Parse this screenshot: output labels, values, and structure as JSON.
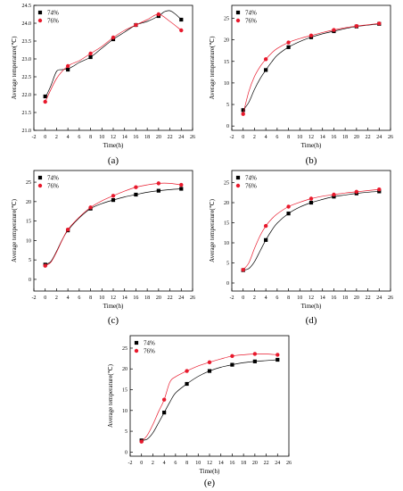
{
  "figure": {
    "colors": {
      "series_74": "#000000",
      "series_76": "#e8192c",
      "axis": "#000000"
    }
  },
  "chart_data": [
    {
      "type": "scatter",
      "panel_label": "(a)",
      "xlabel": "Time(h)",
      "ylabel": "Average temperature(℃)",
      "xlim": [
        -2,
        26
      ],
      "ylim": [
        21.0,
        24.5
      ],
      "x_ticks": [
        -2,
        0,
        2,
        4,
        6,
        8,
        10,
        12,
        14,
        16,
        18,
        20,
        22,
        24,
        26
      ],
      "y_ticks": [
        21.0,
        21.5,
        22.0,
        22.5,
        23.0,
        23.5,
        24.0,
        24.5
      ],
      "y_decimals": 1,
      "legend": "top-left",
      "series": [
        {
          "name": "74%",
          "marker": "square",
          "color": "#000000",
          "x": [
            0,
            4,
            8,
            12,
            16,
            20,
            24
          ],
          "y": [
            21.95,
            22.7,
            23.05,
            23.55,
            23.95,
            24.2,
            24.1
          ],
          "curve_x": [
            0,
            1,
            2,
            3,
            4,
            5,
            6,
            8,
            10,
            12,
            14,
            16,
            18,
            20,
            21,
            22,
            23,
            24
          ],
          "curve_y": [
            21.9,
            22.25,
            22.65,
            22.7,
            22.72,
            22.8,
            22.9,
            23.05,
            23.3,
            23.55,
            23.75,
            23.95,
            24.05,
            24.2,
            24.32,
            24.35,
            24.25,
            24.1
          ]
        },
        {
          "name": "76%",
          "marker": "circle",
          "color": "#e8192c",
          "x": [
            0,
            4,
            8,
            12,
            16,
            20,
            24
          ],
          "y": [
            21.8,
            22.8,
            23.15,
            23.6,
            23.95,
            24.25,
            23.8
          ],
          "curve_x": [
            0,
            2,
            4,
            6,
            8,
            10,
            12,
            14,
            16,
            18,
            20,
            22,
            24
          ],
          "curve_y": [
            21.8,
            22.45,
            22.8,
            22.95,
            23.15,
            23.35,
            23.6,
            23.8,
            23.95,
            24.1,
            24.25,
            24.05,
            23.8
          ]
        }
      ]
    },
    {
      "type": "scatter",
      "panel_label": "(b)",
      "xlabel": "Time(h)",
      "ylabel": "Average temperature(℃)",
      "xlim": [
        -2,
        26
      ],
      "ylim": [
        -1,
        28
      ],
      "x_ticks": [
        -2,
        0,
        2,
        4,
        6,
        8,
        10,
        12,
        14,
        16,
        18,
        20,
        22,
        24,
        26
      ],
      "y_ticks": [
        0,
        5,
        10,
        15,
        20,
        25
      ],
      "y_decimals": 0,
      "legend": "top-left",
      "series": [
        {
          "name": "74%",
          "marker": "square",
          "color": "#000000",
          "x": [
            0,
            4,
            8,
            12,
            16,
            20,
            24
          ],
          "y": [
            3.7,
            13.0,
            18.3,
            20.6,
            22.0,
            23.1,
            23.7
          ],
          "curve_x": [
            0,
            1,
            2,
            3,
            4,
            5,
            6,
            8,
            10,
            12,
            14,
            16,
            18,
            20,
            22,
            24
          ],
          "curve_y": [
            3.7,
            5.5,
            8.5,
            11.0,
            13.0,
            14.8,
            16.4,
            18.3,
            19.6,
            20.6,
            21.4,
            22.0,
            22.6,
            23.1,
            23.4,
            23.7
          ]
        },
        {
          "name": "76%",
          "marker": "circle",
          "color": "#e8192c",
          "x": [
            0,
            4,
            8,
            12,
            16,
            20,
            24
          ],
          "y": [
            2.8,
            15.5,
            19.4,
            21.0,
            22.3,
            23.2,
            23.8
          ],
          "curve_x": [
            0,
            1,
            2,
            3,
            4,
            5,
            6,
            8,
            10,
            12,
            14,
            16,
            18,
            20,
            22,
            24
          ],
          "curve_y": [
            2.8,
            8.0,
            11.5,
            13.8,
            15.5,
            16.9,
            18.0,
            19.4,
            20.3,
            21.0,
            21.7,
            22.3,
            22.8,
            23.2,
            23.5,
            23.8
          ]
        }
      ]
    },
    {
      "type": "scatter",
      "panel_label": "(c)",
      "xlabel": "Time(h)",
      "ylabel": "Average temperature(℃)",
      "xlim": [
        -2,
        26
      ],
      "ylim": [
        -3,
        28
      ],
      "x_ticks": [
        -2,
        0,
        2,
        4,
        6,
        8,
        10,
        12,
        14,
        16,
        18,
        20,
        22,
        24,
        26
      ],
      "y_ticks": [
        0,
        5,
        10,
        15,
        20,
        25
      ],
      "y_decimals": 0,
      "legend": "top-left",
      "series": [
        {
          "name": "74%",
          "marker": "square",
          "color": "#000000",
          "x": [
            0,
            4,
            8,
            12,
            16,
            20,
            24
          ],
          "y": [
            3.8,
            12.6,
            18.2,
            20.4,
            21.8,
            22.8,
            23.3
          ],
          "curve_x": [
            0,
            1,
            2,
            3,
            4,
            6,
            8,
            10,
            12,
            14,
            16,
            18,
            20,
            22,
            24
          ],
          "curve_y": [
            3.8,
            4.6,
            7.2,
            10.2,
            12.6,
            15.8,
            18.2,
            19.5,
            20.4,
            21.2,
            21.8,
            22.4,
            22.8,
            23.1,
            23.3
          ]
        },
        {
          "name": "76%",
          "marker": "circle",
          "color": "#e8192c",
          "x": [
            0,
            4,
            8,
            12,
            16,
            20,
            24
          ],
          "y": [
            3.5,
            12.8,
            18.5,
            21.5,
            23.7,
            24.7,
            24.3
          ],
          "curve_x": [
            0,
            1,
            2,
            3,
            4,
            6,
            8,
            10,
            12,
            14,
            16,
            18,
            20,
            22,
            24
          ],
          "curve_y": [
            3.5,
            4.4,
            7.0,
            10.1,
            12.8,
            16.0,
            18.5,
            20.2,
            21.5,
            22.7,
            23.7,
            24.3,
            24.7,
            24.7,
            24.3
          ]
        }
      ]
    },
    {
      "type": "scatter",
      "panel_label": "(d)",
      "xlabel": "Time(h)",
      "ylabel": "Average temperature(℃)",
      "xlim": [
        -2,
        26
      ],
      "ylim": [
        -2,
        28
      ],
      "x_ticks": [
        -2,
        0,
        2,
        4,
        6,
        8,
        10,
        12,
        14,
        16,
        18,
        20,
        22,
        24,
        26
      ],
      "y_ticks": [
        0,
        5,
        10,
        15,
        20,
        25
      ],
      "y_decimals": 0,
      "legend": "top-left",
      "series": [
        {
          "name": "74%",
          "marker": "square",
          "color": "#000000",
          "x": [
            0,
            4,
            8,
            12,
            16,
            20,
            24
          ],
          "y": [
            3.2,
            10.7,
            17.3,
            20.0,
            21.5,
            22.3,
            22.8
          ],
          "curve_x": [
            0,
            1,
            2,
            3,
            4,
            5,
            6,
            8,
            10,
            12,
            14,
            16,
            18,
            20,
            22,
            24
          ],
          "curve_y": [
            3.2,
            3.6,
            5.3,
            8.0,
            10.7,
            13.0,
            14.9,
            17.3,
            18.9,
            20.0,
            20.8,
            21.5,
            21.9,
            22.3,
            22.6,
            22.8
          ]
        },
        {
          "name": "76%",
          "marker": "circle",
          "color": "#e8192c",
          "x": [
            0,
            4,
            8,
            12,
            16,
            20,
            24
          ],
          "y": [
            3.3,
            14.2,
            19.0,
            21.0,
            22.0,
            22.7,
            23.3
          ],
          "curve_x": [
            0,
            1,
            2,
            3,
            4,
            5,
            6,
            8,
            10,
            12,
            14,
            16,
            18,
            20,
            22,
            24
          ],
          "curve_y": [
            3.3,
            5.0,
            8.6,
            11.8,
            14.2,
            15.9,
            17.2,
            19.0,
            20.1,
            21.0,
            21.6,
            22.0,
            22.4,
            22.7,
            23.0,
            23.3
          ]
        }
      ]
    },
    {
      "type": "scatter",
      "panel_label": "(e)",
      "xlabel": "Time(h)",
      "ylabel": "Average temperature(℃)",
      "xlim": [
        -2,
        26
      ],
      "ylim": [
        -1,
        28
      ],
      "x_ticks": [
        -2,
        0,
        2,
        4,
        6,
        8,
        10,
        12,
        14,
        16,
        18,
        20,
        22,
        24,
        26
      ],
      "y_ticks": [
        0,
        5,
        10,
        15,
        20,
        25
      ],
      "y_decimals": 0,
      "legend": "top-left",
      "series": [
        {
          "name": "74%",
          "marker": "square",
          "color": "#000000",
          "x": [
            0,
            4,
            8,
            12,
            16,
            20,
            24
          ],
          "y": [
            2.8,
            9.5,
            16.4,
            19.5,
            21.0,
            21.8,
            22.2
          ],
          "curve_x": [
            0,
            1,
            2,
            3,
            4,
            5,
            6,
            8,
            10,
            12,
            14,
            16,
            18,
            20,
            22,
            24
          ],
          "curve_y": [
            2.8,
            3.1,
            4.6,
            7.0,
            9.5,
            12.0,
            14.2,
            16.4,
            18.2,
            19.5,
            20.4,
            21.0,
            21.5,
            21.8,
            22.0,
            22.2
          ]
        },
        {
          "name": "76%",
          "marker": "circle",
          "color": "#e8192c",
          "x": [
            0,
            4,
            8,
            12,
            16,
            20,
            24
          ],
          "y": [
            2.5,
            12.6,
            19.5,
            21.6,
            23.1,
            23.6,
            23.4
          ],
          "curve_x": [
            0,
            1,
            2,
            3,
            4,
            5,
            6,
            8,
            10,
            12,
            14,
            16,
            18,
            20,
            22,
            24
          ],
          "curve_y": [
            2.5,
            4.0,
            6.6,
            9.7,
            12.6,
            16.8,
            18.1,
            19.5,
            20.7,
            21.6,
            22.4,
            23.1,
            23.4,
            23.6,
            23.6,
            23.4
          ]
        }
      ]
    }
  ]
}
